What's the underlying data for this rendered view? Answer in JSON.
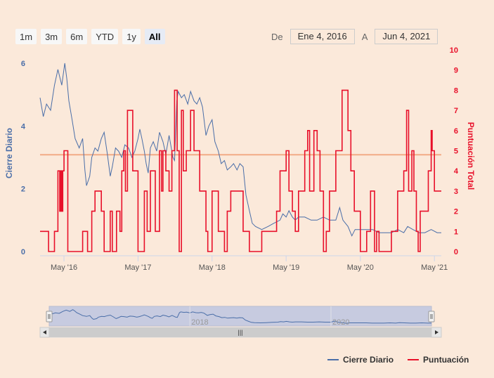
{
  "range_selector": {
    "buttons": [
      "1m",
      "3m",
      "6m",
      "YTD",
      "1y",
      "All"
    ],
    "active": "All"
  },
  "date_range": {
    "from_label": "De",
    "from": "Ene 4, 2016",
    "to_label": "A",
    "to": "Jun 4, 2021"
  },
  "colors": {
    "close": "#4a6ea8",
    "score": "#e8102a",
    "plotline": "#f2ab86",
    "left_axis": "#4a6ea8",
    "right_axis": "#e8102a"
  },
  "legend": {
    "close": "Cierre Diario",
    "score": "Puntuación"
  },
  "chart_data": {
    "type": "line",
    "title": "",
    "yaxis_left": {
      "label": "Cierre Diario",
      "ticks": [
        "0",
        "2",
        "4",
        "6"
      ],
      "range": [
        0,
        6.2
      ]
    },
    "yaxis_right": {
      "label": "Puntuación Total",
      "ticks": [
        "0",
        "1",
        "2",
        "3",
        "4",
        "5",
        "6",
        "7",
        "8",
        "9",
        "10"
      ],
      "range": [
        0,
        10
      ]
    },
    "xaxis": {
      "ticks": [
        "May '16",
        "May '17",
        "May '18",
        "May '19",
        "May '20",
        "May '21"
      ],
      "tick_dates": [
        "2016-05-01",
        "2017-05-01",
        "2018-05-01",
        "2019-05-01",
        "2020-05-01",
        "2021-05-01"
      ],
      "range": [
        "2016-01-04",
        "2021-06-04"
      ]
    },
    "plot_line": {
      "axis": "right",
      "value": 4.8
    },
    "series": [
      {
        "name": "Cierre Diario",
        "axis": "left",
        "points": [
          [
            "2016-01-04",
            4.9
          ],
          [
            "2016-01-20",
            4.3
          ],
          [
            "2016-02-05",
            4.7
          ],
          [
            "2016-02-25",
            4.5
          ],
          [
            "2016-03-15",
            5.3
          ],
          [
            "2016-04-01",
            5.8
          ],
          [
            "2016-04-20",
            5.3
          ],
          [
            "2016-05-05",
            6.0
          ],
          [
            "2016-05-15",
            5.5
          ],
          [
            "2016-05-25",
            4.8
          ],
          [
            "2016-06-10",
            4.2
          ],
          [
            "2016-06-25",
            3.6
          ],
          [
            "2016-07-15",
            3.3
          ],
          [
            "2016-08-01",
            3.6
          ],
          [
            "2016-08-12",
            2.6
          ],
          [
            "2016-08-20",
            2.1
          ],
          [
            "2016-09-05",
            2.4
          ],
          [
            "2016-09-15",
            3.0
          ],
          [
            "2016-10-01",
            3.3
          ],
          [
            "2016-10-15",
            3.2
          ],
          [
            "2016-11-01",
            3.6
          ],
          [
            "2016-11-15",
            3.8
          ],
          [
            "2016-12-01",
            3.1
          ],
          [
            "2016-12-15",
            2.4
          ],
          [
            "2016-12-25",
            2.7
          ],
          [
            "2017-01-10",
            3.3
          ],
          [
            "2017-01-25",
            3.2
          ],
          [
            "2017-02-10",
            3.0
          ],
          [
            "2017-02-25",
            3.4
          ],
          [
            "2017-03-15",
            3.3
          ],
          [
            "2017-04-01",
            3.0
          ],
          [
            "2017-04-15",
            3.2
          ],
          [
            "2017-05-01",
            3.6
          ],
          [
            "2017-05-10",
            3.9
          ],
          [
            "2017-05-20",
            3.6
          ],
          [
            "2017-06-01",
            3.2
          ],
          [
            "2017-06-10",
            2.8
          ],
          [
            "2017-06-20",
            2.5
          ],
          [
            "2017-07-01",
            3.3
          ],
          [
            "2017-07-15",
            3.5
          ],
          [
            "2017-08-01",
            3.2
          ],
          [
            "2017-08-15",
            3.8
          ],
          [
            "2017-09-01",
            3.5
          ],
          [
            "2017-09-15",
            3.1
          ],
          [
            "2017-10-01",
            3.7
          ],
          [
            "2017-10-20",
            3.0
          ],
          [
            "2017-10-28",
            2.9
          ],
          [
            "2017-11-08",
            4.8
          ],
          [
            "2017-11-15",
            5.1
          ],
          [
            "2017-12-01",
            4.9
          ],
          [
            "2017-12-15",
            5.0
          ],
          [
            "2018-01-01",
            4.7
          ],
          [
            "2018-01-15",
            5.1
          ],
          [
            "2018-02-01",
            4.8
          ],
          [
            "2018-02-15",
            4.7
          ],
          [
            "2018-03-01",
            4.9
          ],
          [
            "2018-03-15",
            4.6
          ],
          [
            "2018-04-01",
            3.7
          ],
          [
            "2018-04-15",
            4.0
          ],
          [
            "2018-05-01",
            4.2
          ],
          [
            "2018-05-15",
            3.5
          ],
          [
            "2018-06-01",
            3.2
          ],
          [
            "2018-06-15",
            2.8
          ],
          [
            "2018-07-01",
            2.9
          ],
          [
            "2018-07-15",
            2.6
          ],
          [
            "2018-08-01",
            2.7
          ],
          [
            "2018-08-15",
            2.8
          ],
          [
            "2018-09-01",
            2.6
          ],
          [
            "2018-09-15",
            2.8
          ],
          [
            "2018-10-01",
            2.7
          ],
          [
            "2018-10-15",
            1.8
          ],
          [
            "2018-11-01",
            1.3
          ],
          [
            "2018-11-15",
            0.9
          ],
          [
            "2018-12-01",
            0.8
          ],
          [
            "2019-01-01",
            0.7
          ],
          [
            "2019-02-01",
            0.8
          ],
          [
            "2019-03-01",
            0.9
          ],
          [
            "2019-04-01",
            1.0
          ],
          [
            "2019-04-15",
            1.2
          ],
          [
            "2019-05-01",
            1.1
          ],
          [
            "2019-05-15",
            1.3
          ],
          [
            "2019-06-01",
            1.1
          ],
          [
            "2019-06-15",
            1.0
          ],
          [
            "2019-07-01",
            1.1
          ],
          [
            "2019-08-01",
            1.1
          ],
          [
            "2019-09-01",
            1.0
          ],
          [
            "2019-10-01",
            1.0
          ],
          [
            "2019-11-01",
            1.1
          ],
          [
            "2019-12-01",
            1.0
          ],
          [
            "2020-01-01",
            1.0
          ],
          [
            "2020-01-20",
            1.4
          ],
          [
            "2020-02-05",
            1.0
          ],
          [
            "2020-03-01",
            0.8
          ],
          [
            "2020-03-20",
            0.5
          ],
          [
            "2020-04-05",
            0.7
          ],
          [
            "2020-05-01",
            0.7
          ],
          [
            "2020-06-01",
            0.7
          ],
          [
            "2020-07-01",
            0.7
          ],
          [
            "2020-08-01",
            0.6
          ],
          [
            "2020-09-01",
            0.6
          ],
          [
            "2020-10-01",
            0.6
          ],
          [
            "2020-11-01",
            0.7
          ],
          [
            "2020-12-01",
            0.6
          ],
          [
            "2020-12-20",
            0.8
          ],
          [
            "2021-01-15",
            0.7
          ],
          [
            "2021-02-15",
            0.6
          ],
          [
            "2021-03-15",
            0.6
          ],
          [
            "2021-04-15",
            0.7
          ],
          [
            "2021-05-15",
            0.6
          ],
          [
            "2021-06-04",
            0.6
          ]
        ]
      },
      {
        "name": "Puntuación",
        "axis": "right",
        "points": [
          [
            "2016-01-04",
            1
          ],
          [
            "2016-02-15",
            0
          ],
          [
            "2016-03-15",
            1
          ],
          [
            "2016-04-01",
            4
          ],
          [
            "2016-04-10",
            2
          ],
          [
            "2016-04-15",
            4
          ],
          [
            "2016-04-20",
            2
          ],
          [
            "2016-04-25",
            4
          ],
          [
            "2016-05-01",
            5
          ],
          [
            "2016-05-20",
            0
          ],
          [
            "2016-08-01",
            1
          ],
          [
            "2016-08-25",
            0
          ],
          [
            "2016-09-15",
            2
          ],
          [
            "2016-10-01",
            3
          ],
          [
            "2016-11-01",
            2
          ],
          [
            "2016-11-15",
            0
          ],
          [
            "2016-12-15",
            2
          ],
          [
            "2016-12-25",
            0
          ],
          [
            "2017-01-15",
            2
          ],
          [
            "2017-02-01",
            1
          ],
          [
            "2017-02-10",
            4
          ],
          [
            "2017-02-20",
            5
          ],
          [
            "2017-02-28",
            3
          ],
          [
            "2017-03-10",
            7
          ],
          [
            "2017-03-25",
            7
          ],
          [
            "2017-04-05",
            4
          ],
          [
            "2017-04-15",
            4
          ],
          [
            "2017-05-01",
            0
          ],
          [
            "2017-06-01",
            3
          ],
          [
            "2017-06-15",
            1
          ],
          [
            "2017-07-01",
            4
          ],
          [
            "2017-07-15",
            4
          ],
          [
            "2017-07-25",
            1
          ],
          [
            "2017-08-15",
            5
          ],
          [
            "2017-08-25",
            3
          ],
          [
            "2017-09-01",
            5
          ],
          [
            "2017-09-15",
            4
          ],
          [
            "2017-10-01",
            3
          ],
          [
            "2017-10-15",
            5
          ],
          [
            "2017-10-28",
            8
          ],
          [
            "2017-11-10",
            5
          ],
          [
            "2017-11-20",
            0
          ],
          [
            "2017-12-01",
            7
          ],
          [
            "2017-12-10",
            4
          ],
          [
            "2017-12-25",
            5
          ],
          [
            "2018-01-15",
            7
          ],
          [
            "2018-02-01",
            5
          ],
          [
            "2018-03-01",
            3
          ],
          [
            "2018-04-01",
            1
          ],
          [
            "2018-04-10",
            0
          ],
          [
            "2018-05-01",
            3
          ],
          [
            "2018-06-01",
            1
          ],
          [
            "2018-07-01",
            0
          ],
          [
            "2018-07-15",
            2
          ],
          [
            "2018-08-01",
            3
          ],
          [
            "2018-09-01",
            3
          ],
          [
            "2018-10-01",
            1
          ],
          [
            "2018-11-01",
            0
          ],
          [
            "2019-01-01",
            1
          ],
          [
            "2019-03-15",
            2
          ],
          [
            "2019-04-01",
            4
          ],
          [
            "2019-05-01",
            5
          ],
          [
            "2019-05-15",
            3
          ],
          [
            "2019-06-01",
            2
          ],
          [
            "2019-06-15",
            1
          ],
          [
            "2019-07-01",
            3
          ],
          [
            "2019-08-01",
            5
          ],
          [
            "2019-08-15",
            6
          ],
          [
            "2019-08-25",
            3
          ],
          [
            "2019-09-15",
            6
          ],
          [
            "2019-10-01",
            5
          ],
          [
            "2019-10-15",
            3
          ],
          [
            "2019-11-01",
            0
          ],
          [
            "2019-11-15",
            1
          ],
          [
            "2019-12-01",
            3
          ],
          [
            "2020-01-01",
            5
          ],
          [
            "2020-02-01",
            8
          ],
          [
            "2020-03-01",
            6
          ],
          [
            "2020-03-15",
            4
          ],
          [
            "2020-04-01",
            2
          ],
          [
            "2020-05-01",
            0
          ],
          [
            "2020-06-01",
            1
          ],
          [
            "2020-06-20",
            3
          ],
          [
            "2020-07-10",
            0
          ],
          [
            "2020-07-20",
            1
          ],
          [
            "2020-08-01",
            0
          ],
          [
            "2020-09-01",
            0
          ],
          [
            "2020-10-01",
            1
          ],
          [
            "2020-11-01",
            3
          ],
          [
            "2020-12-01",
            4
          ],
          [
            "2020-12-15",
            7
          ],
          [
            "2020-12-25",
            3
          ],
          [
            "2021-01-10",
            5
          ],
          [
            "2021-01-20",
            3
          ],
          [
            "2021-02-01",
            1
          ],
          [
            "2021-02-10",
            0
          ],
          [
            "2021-02-20",
            2
          ],
          [
            "2021-03-15",
            2
          ],
          [
            "2021-04-01",
            4
          ],
          [
            "2021-04-15",
            6
          ],
          [
            "2021-04-20",
            5
          ],
          [
            "2021-05-01",
            3
          ],
          [
            "2021-05-20",
            3
          ]
        ]
      }
    ],
    "navigator": {
      "labels": [
        "2018",
        "2020"
      ],
      "handle_grip": "|||"
    },
    "grid": false,
    "legend_position": "bottom-right"
  }
}
